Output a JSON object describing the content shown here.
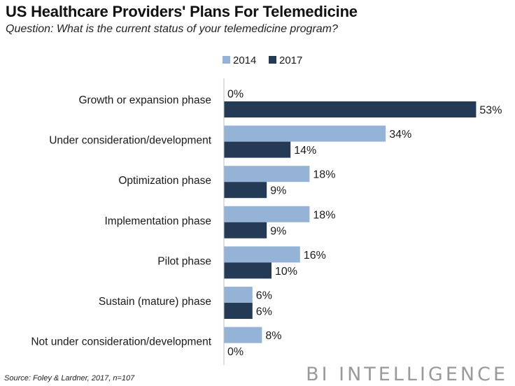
{
  "header": {
    "title": "US Healthcare Providers' Plans For Telemedicine",
    "subtitle": "Question: What is the current status of your telemedicine program?"
  },
  "footer": {
    "source": "Source: Foley & Lardner, 2017, n=107",
    "brand": "BI INTELLIGENCE"
  },
  "colors": {
    "s2014": "#95b3d7",
    "s2017": "#243a55"
  },
  "chart_data": {
    "type": "bar",
    "orientation": "horizontal",
    "title": "US Healthcare Providers' Plans For Telemedicine",
    "subtitle": "Question: What is the current status of your telemedicine program?",
    "xlabel": "",
    "ylabel": "",
    "xlim": [
      0,
      60
    ],
    "value_suffix": "%",
    "legend_position": "top",
    "categories": [
      "Growth or expansion phase",
      "Under consideration/development",
      "Optimization phase",
      "Implementation phase",
      "Pilot phase",
      "Sustain (mature) phase",
      "Not under consideration/development"
    ],
    "series": [
      {
        "name": "2014",
        "values": [
          0,
          34,
          18,
          18,
          16,
          6,
          8
        ]
      },
      {
        "name": "2017",
        "values": [
          53,
          14,
          9,
          9,
          10,
          6,
          0
        ]
      }
    ]
  }
}
